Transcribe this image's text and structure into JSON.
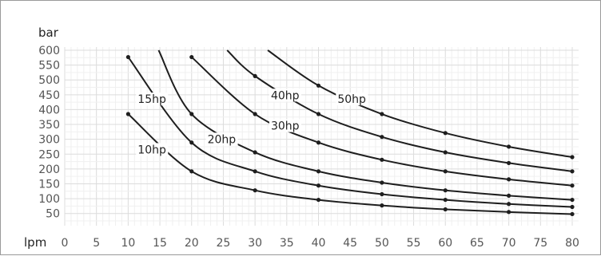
{
  "chart_data": {
    "type": "line",
    "title": "",
    "ylabel": "bar",
    "xlabel": "lpm",
    "xlim": [
      0,
      80
    ],
    "ylim": [
      25,
      600
    ],
    "x_ticks": [
      "0",
      "5",
      "10",
      "15",
      "20",
      "25",
      "30",
      "35",
      "40",
      "45",
      "50",
      "55",
      "60",
      "65",
      "70",
      "75",
      "80"
    ],
    "y_ticks": [
      "50",
      "100",
      "150",
      "200",
      "250",
      "300",
      "350",
      "400",
      "450",
      "500",
      "550",
      "600"
    ],
    "grid": true,
    "series": [
      {
        "name": "10hp",
        "points": [
          [
            10,
            385
          ],
          [
            20,
            192
          ],
          [
            30,
            128
          ],
          [
            40,
            96
          ],
          [
            50,
            77
          ],
          [
            60,
            64
          ],
          [
            70,
            55
          ],
          [
            80,
            48
          ]
        ]
      },
      {
        "name": "15hp",
        "points": [
          [
            10,
            577
          ],
          [
            20,
            289
          ],
          [
            30,
            192
          ],
          [
            40,
            144
          ],
          [
            50,
            115
          ],
          [
            60,
            96
          ],
          [
            70,
            82
          ],
          [
            80,
            72
          ]
        ]
      },
      {
        "name": "20hp",
        "points": [
          [
            14.8,
            600
          ],
          [
            20,
            385
          ],
          [
            30,
            256
          ],
          [
            40,
            192
          ],
          [
            50,
            154
          ],
          [
            60,
            128
          ],
          [
            70,
            110
          ],
          [
            80,
            96
          ]
        ]
      },
      {
        "name": "30hp",
        "points": [
          [
            20,
            577
          ],
          [
            30,
            385
          ],
          [
            40,
            289
          ],
          [
            50,
            231
          ],
          [
            60,
            192
          ],
          [
            70,
            165
          ],
          [
            80,
            144
          ]
        ]
      },
      {
        "name": "40hp",
        "points": [
          [
            25.6,
            600
          ],
          [
            30,
            513
          ],
          [
            40,
            385
          ],
          [
            50,
            308
          ],
          [
            60,
            256
          ],
          [
            70,
            220
          ],
          [
            80,
            192
          ]
        ]
      },
      {
        "name": "50hp",
        "points": [
          [
            32,
            600
          ],
          [
            40,
            481
          ],
          [
            50,
            385
          ],
          [
            60,
            321
          ],
          [
            70,
            275
          ],
          [
            80,
            240
          ]
        ]
      }
    ],
    "labels": [
      {
        "series": "10hp",
        "text": "10hp",
        "x": 11.5,
        "y": 255
      },
      {
        "series": "15hp",
        "text": "15hp",
        "x": 11.5,
        "y": 425
      },
      {
        "series": "20hp",
        "text": "20hp",
        "x": 22.5,
        "y": 290
      },
      {
        "series": "30hp",
        "text": "30hp",
        "x": 32.5,
        "y": 335
      },
      {
        "series": "40hp",
        "text": "40hp",
        "x": 32.5,
        "y": 438
      },
      {
        "series": "50hp",
        "text": "50hp",
        "x": 43,
        "y": 425
      }
    ]
  }
}
